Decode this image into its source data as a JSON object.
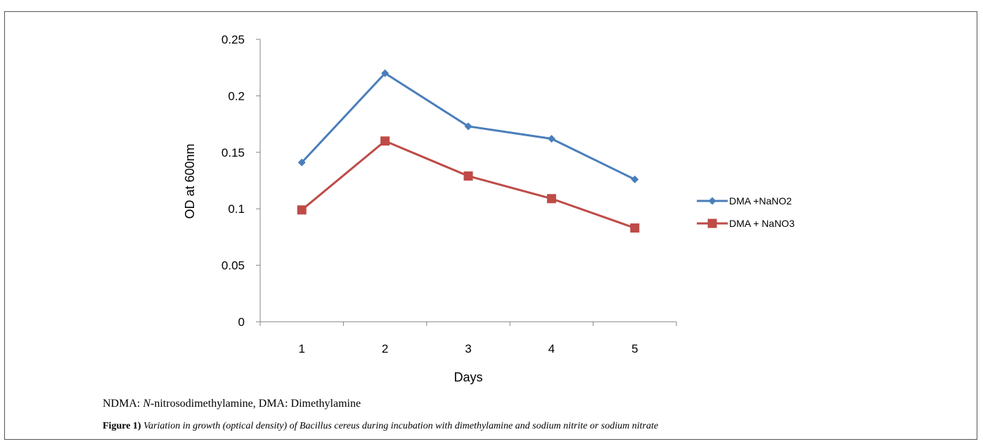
{
  "chart_data": {
    "type": "line",
    "categories": [
      "1",
      "2",
      "3",
      "4",
      "5"
    ],
    "series": [
      {
        "name": "DMA +NaNO2",
        "values": [
          0.141,
          0.22,
          0.173,
          0.162,
          0.126
        ],
        "color": "#4a7ebb",
        "marker": "diamond"
      },
      {
        "name": "DMA + NaNO3",
        "values": [
          0.099,
          0.16,
          0.129,
          0.109,
          0.083
        ],
        "color": "#be4b48",
        "marker": "square"
      }
    ],
    "yticks": [
      "0",
      "0.05",
      "0.1",
      "0.15",
      "0.2",
      "0.25"
    ],
    "ylim": [
      0,
      0.25
    ],
    "xlabel": "Days",
    "ylabel": "OD at 600nm",
    "grid": false,
    "legend_position": "right"
  },
  "footnote": {
    "abbrev_prefix": "NDMA: ",
    "abbrev_italic": "N",
    "abbrev_rest": "-nitrosodimethylamine, DMA: Dimethylamine",
    "caption_label": "Figure 1)",
    "caption_text": " Variation in growth (optical density) of Bacillus cereus during incubation with dimethylamine and sodium nitrite or sodium nitrate"
  }
}
